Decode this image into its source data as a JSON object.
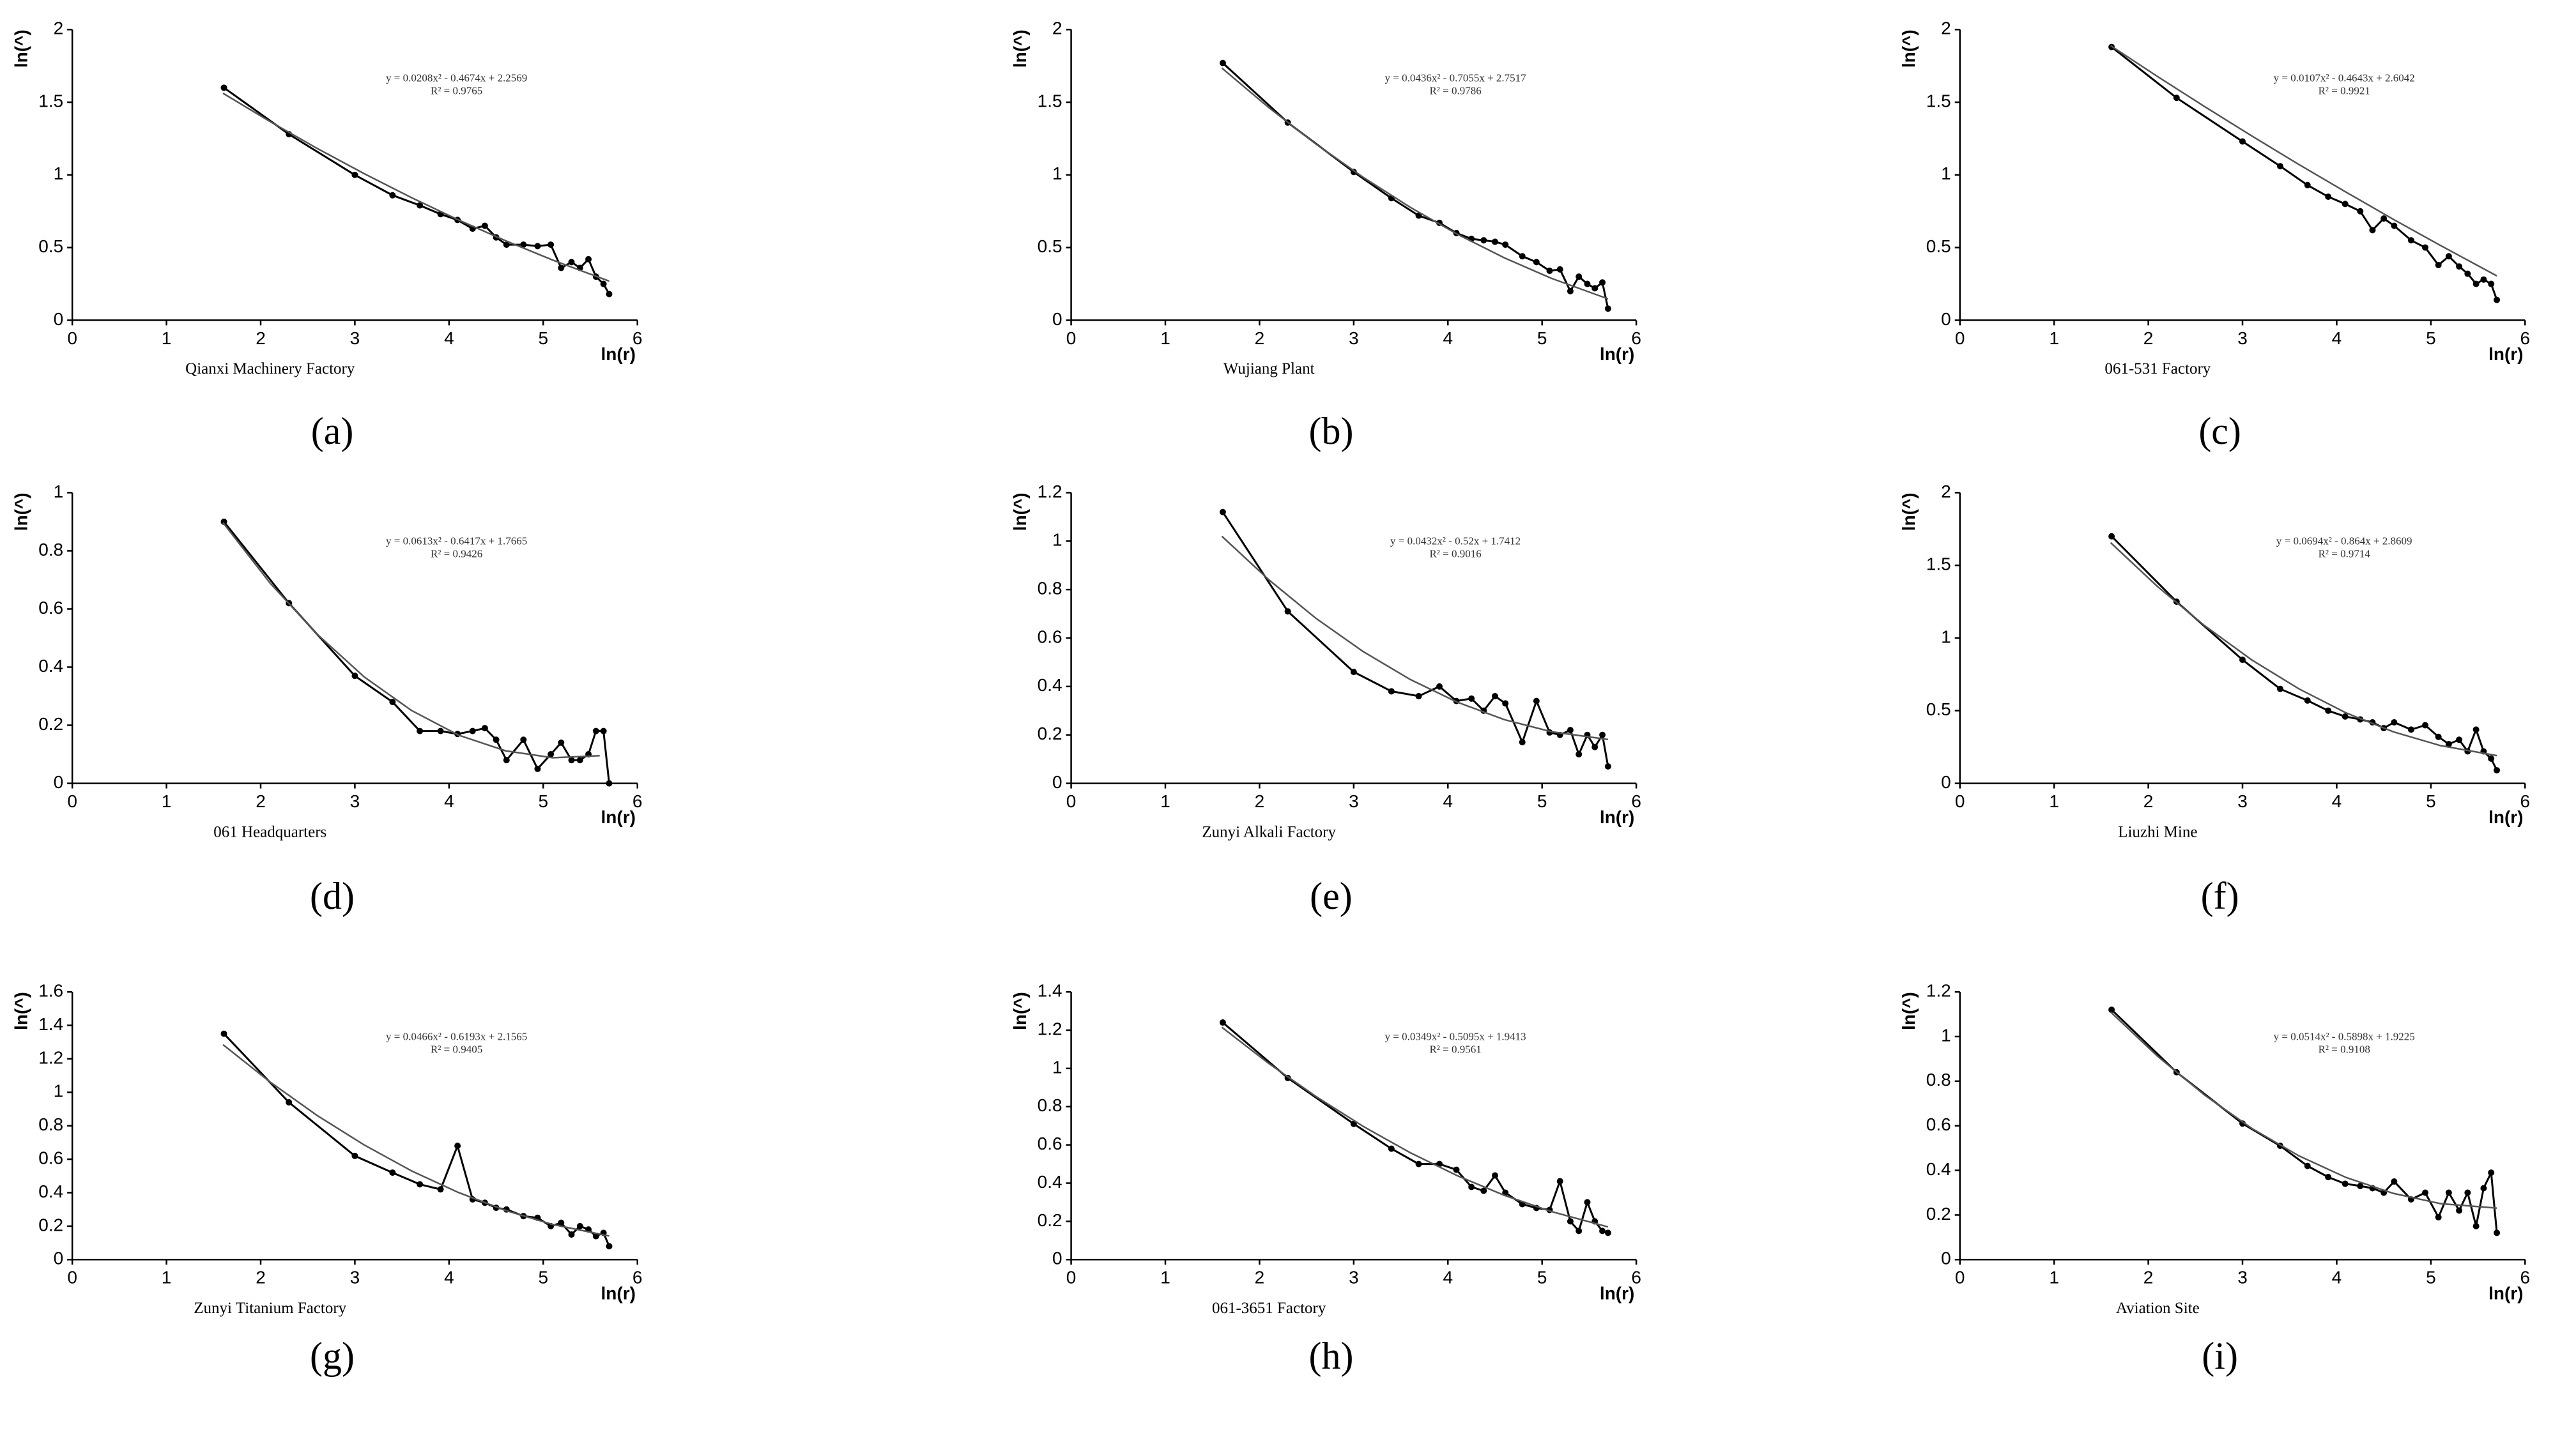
{
  "chart_data": [
    {
      "type": "line",
      "label": "(a)",
      "title": "Qianxi Machinery Factory",
      "equation": "y = 0.0208x² - 0.4674x + 2.2569",
      "r2": "R² = 0.9765",
      "xlabel": "ln(r)",
      "ylabel": "ln(^)",
      "xlim": [
        0,
        6
      ],
      "xticks": [
        0,
        1,
        2,
        3,
        4,
        5,
        6
      ],
      "ylim": [
        0,
        2
      ],
      "yticks": [
        0,
        0.5,
        1,
        1.5,
        2
      ],
      "series": [
        {
          "color": "#000000",
          "marker": true,
          "x": [
            1.61,
            2.3,
            3,
            3.4,
            3.69,
            3.91,
            4.09,
            4.25,
            4.38,
            4.5,
            4.61,
            4.79,
            4.94,
            5.08,
            5.19,
            5.3,
            5.39,
            5.48,
            5.56,
            5.64,
            5.7
          ],
          "values": [
            1.6,
            1.28,
            1.0,
            0.86,
            0.79,
            0.73,
            0.69,
            0.63,
            0.65,
            0.57,
            0.52,
            0.52,
            0.51,
            0.52,
            0.36,
            0.4,
            0.36,
            0.42,
            0.3,
            0.25,
            0.18
          ]
        },
        {
          "color": "#555555",
          "marker": false,
          "x": [
            1.6,
            2.1,
            2.6,
            3.1,
            3.6,
            4.1,
            4.6,
            5.1,
            5.7
          ],
          "values": [
            1.562,
            1.367,
            1.182,
            1.008,
            0.844,
            0.69,
            0.547,
            0.414,
            0.269
          ]
        }
      ]
    },
    {
      "type": "line",
      "label": "(b)",
      "title": "Wujiang Plant",
      "equation": "y = 0.0436x² - 0.7055x + 2.7517",
      "r2": "R² = 0.9786",
      "xlabel": "ln(r)",
      "ylabel": "ln(^)",
      "xlim": [
        0,
        6
      ],
      "xticks": [
        0,
        1,
        2,
        3,
        4,
        5,
        6
      ],
      "ylim": [
        0,
        2
      ],
      "yticks": [
        0,
        0.5,
        1,
        1.5,
        2
      ],
      "series": [
        {
          "color": "#000000",
          "marker": true,
          "x": [
            1.61,
            2.3,
            3,
            3.4,
            3.69,
            3.91,
            4.09,
            4.25,
            4.38,
            4.5,
            4.61,
            4.79,
            4.94,
            5.08,
            5.19,
            5.3,
            5.39,
            5.48,
            5.56,
            5.64,
            5.7
          ],
          "values": [
            1.77,
            1.36,
            1.02,
            0.84,
            0.72,
            0.67,
            0.6,
            0.56,
            0.55,
            0.54,
            0.52,
            0.44,
            0.4,
            0.34,
            0.35,
            0.2,
            0.3,
            0.25,
            0.22,
            0.26,
            0.08
          ]
        },
        {
          "color": "#555555",
          "marker": false,
          "x": [
            1.6,
            2.1,
            2.6,
            3.1,
            3.6,
            4.1,
            4.6,
            5.1,
            5.7
          ],
          "values": [
            1.735,
            1.462,
            1.212,
            0.984,
            0.777,
            0.592,
            0.429,
            0.288,
            0.147
          ]
        }
      ]
    },
    {
      "type": "line",
      "label": "(c)",
      "title": "061-531 Factory",
      "equation": "y = 0.0107x² - 0.4643x + 2.6042",
      "r2": "R² = 0.9921",
      "xlabel": "ln(r)",
      "ylabel": "ln(^)",
      "xlim": [
        0,
        6
      ],
      "xticks": [
        0,
        1,
        2,
        3,
        4,
        5,
        6
      ],
      "ylim": [
        0,
        2
      ],
      "yticks": [
        0,
        0.5,
        1,
        1.5,
        2
      ],
      "series": [
        {
          "color": "#000000",
          "marker": true,
          "x": [
            1.61,
            2.3,
            3,
            3.4,
            3.69,
            3.91,
            4.09,
            4.25,
            4.38,
            4.5,
            4.61,
            4.79,
            4.94,
            5.08,
            5.19,
            5.3,
            5.39,
            5.48,
            5.56,
            5.64,
            5.7
          ],
          "values": [
            1.88,
            1.53,
            1.23,
            1.06,
            0.93,
            0.85,
            0.8,
            0.75,
            0.62,
            0.7,
            0.65,
            0.55,
            0.5,
            0.38,
            0.44,
            0.37,
            0.32,
            0.25,
            0.28,
            0.25,
            0.14
          ]
        },
        {
          "color": "#555555",
          "marker": false,
          "x": [
            1.6,
            2.1,
            2.6,
            3.1,
            3.6,
            4.1,
            4.6,
            5.1,
            5.7
          ],
          "values": [
            1.889,
            1.676,
            1.469,
            1.268,
            1.071,
            0.881,
            0.695,
            0.515,
            0.305
          ]
        }
      ]
    },
    {
      "type": "line",
      "label": "(d)",
      "title": "061 Headquarters",
      "equation": "y = 0.0613x² - 0.6417x + 1.7665",
      "r2": "R² = 0.9426",
      "xlabel": "ln(r)",
      "ylabel": "ln(^)",
      "xlim": [
        0,
        6
      ],
      "xticks": [
        0,
        1,
        2,
        3,
        4,
        5,
        6
      ],
      "ylim": [
        0,
        1
      ],
      "yticks": [
        0,
        0.2,
        0.4,
        0.6,
        0.8,
        1
      ],
      "series": [
        {
          "color": "#000000",
          "marker": true,
          "x": [
            1.61,
            2.3,
            3,
            3.4,
            3.69,
            3.91,
            4.09,
            4.25,
            4.38,
            4.5,
            4.61,
            4.79,
            4.94,
            5.08,
            5.19,
            5.3,
            5.39,
            5.48,
            5.56,
            5.64,
            5.7
          ],
          "values": [
            0.9,
            0.62,
            0.37,
            0.28,
            0.18,
            0.18,
            0.17,
            0.18,
            0.19,
            0.15,
            0.08,
            0.15,
            0.05,
            0.1,
            0.14,
            0.08,
            0.08,
            0.1,
            0.18,
            0.18,
            0.0
          ]
        },
        {
          "color": "#555555",
          "marker": false,
          "x": [
            1.6,
            2.1,
            2.6,
            3.1,
            3.6,
            4.1,
            4.6,
            5.1,
            5.6
          ],
          "values": [
            0.897,
            0.689,
            0.513,
            0.366,
            0.251,
            0.166,
            0.112,
            0.088,
            0.095
          ]
        }
      ]
    },
    {
      "type": "line",
      "label": "(e)",
      "title": "Zunyi Alkali Factory",
      "equation": "y = 0.0432x² - 0.52x + 1.7412",
      "r2": "R² = 0.9016",
      "xlabel": "ln(r)",
      "ylabel": "ln(^)",
      "xlim": [
        0,
        6
      ],
      "xticks": [
        0,
        1,
        2,
        3,
        4,
        5,
        6
      ],
      "ylim": [
        0,
        1.2
      ],
      "yticks": [
        0,
        0.2,
        0.4,
        0.6,
        0.8,
        1,
        1.2
      ],
      "series": [
        {
          "color": "#000000",
          "marker": true,
          "x": [
            1.61,
            2.3,
            3,
            3.4,
            3.69,
            3.91,
            4.09,
            4.25,
            4.38,
            4.5,
            4.61,
            4.79,
            4.94,
            5.08,
            5.19,
            5.3,
            5.39,
            5.48,
            5.56,
            5.64,
            5.7
          ],
          "values": [
            1.12,
            0.71,
            0.46,
            0.38,
            0.36,
            0.4,
            0.34,
            0.35,
            0.3,
            0.36,
            0.33,
            0.17,
            0.34,
            0.21,
            0.2,
            0.22,
            0.12,
            0.2,
            0.15,
            0.2,
            0.07
          ]
        },
        {
          "color": "#555555",
          "marker": false,
          "x": [
            1.6,
            2.1,
            2.6,
            3.1,
            3.6,
            4.1,
            4.6,
            5.1,
            5.7
          ],
          "values": [
            1.02,
            0.84,
            0.681,
            0.544,
            0.429,
            0.335,
            0.263,
            0.213,
            0.181
          ]
        }
      ]
    },
    {
      "type": "line",
      "label": "(f)",
      "title": "Liuzhi Mine",
      "equation": "y = 0.0694x² - 0.864x + 2.8609",
      "r2": "R² = 0.9714",
      "xlabel": "ln(r)",
      "ylabel": "ln(^)",
      "xlim": [
        0,
        6
      ],
      "xticks": [
        0,
        1,
        2,
        3,
        4,
        5,
        6
      ],
      "ylim": [
        0,
        2
      ],
      "yticks": [
        0,
        0.5,
        1,
        1.5,
        2
      ],
      "series": [
        {
          "color": "#000000",
          "marker": true,
          "x": [
            1.61,
            2.3,
            3,
            3.4,
            3.69,
            3.91,
            4.09,
            4.25,
            4.38,
            4.5,
            4.61,
            4.79,
            4.94,
            5.08,
            5.19,
            5.3,
            5.39,
            5.48,
            5.56,
            5.64,
            5.7
          ],
          "values": [
            1.7,
            1.25,
            0.85,
            0.65,
            0.57,
            0.5,
            0.46,
            0.44,
            0.42,
            0.38,
            0.42,
            0.37,
            0.4,
            0.32,
            0.27,
            0.3,
            0.22,
            0.37,
            0.22,
            0.17,
            0.09
          ]
        },
        {
          "color": "#555555",
          "marker": false,
          "x": [
            1.6,
            2.1,
            2.6,
            3.1,
            3.6,
            4.1,
            4.6,
            5.1,
            5.7
          ],
          "values": [
            1.656,
            1.353,
            1.084,
            0.849,
            0.65,
            0.485,
            0.355,
            0.26,
            0.191
          ]
        }
      ]
    },
    {
      "type": "line",
      "label": "(g)",
      "title": "Zunyi Titanium Factory",
      "equation": "y = 0.0466x² - 0.6193x + 2.1565",
      "r2": "R² = 0.9405",
      "xlabel": "ln(r)",
      "ylabel": "ln(^)",
      "xlim": [
        0,
        6
      ],
      "xticks": [
        0,
        1,
        2,
        3,
        4,
        5,
        6
      ],
      "ylim": [
        0,
        1.6
      ],
      "yticks": [
        0,
        0.2,
        0.4,
        0.6,
        0.8,
        1,
        1.2,
        1.4,
        1.6
      ],
      "series": [
        {
          "color": "#000000",
          "marker": true,
          "x": [
            1.61,
            2.3,
            3,
            3.4,
            3.69,
            3.91,
            4.09,
            4.25,
            4.38,
            4.5,
            4.61,
            4.79,
            4.94,
            5.08,
            5.19,
            5.3,
            5.39,
            5.48,
            5.56,
            5.64,
            5.7
          ],
          "values": [
            1.35,
            0.94,
            0.62,
            0.52,
            0.45,
            0.42,
            0.68,
            0.36,
            0.34,
            0.31,
            0.3,
            0.26,
            0.25,
            0.2,
            0.22,
            0.15,
            0.2,
            0.18,
            0.14,
            0.16,
            0.08
          ]
        },
        {
          "color": "#555555",
          "marker": false,
          "x": [
            1.6,
            2.1,
            2.6,
            3.1,
            3.6,
            4.1,
            4.6,
            5.1,
            5.7
          ],
          "values": [
            1.285,
            1.062,
            0.861,
            0.685,
            0.531,
            0.401,
            0.294,
            0.21,
            0.141
          ]
        }
      ]
    },
    {
      "type": "line",
      "label": "(h)",
      "title": "061-3651 Factory",
      "equation": "y = 0.0349x² - 0.5095x + 1.9413",
      "r2": "R² = 0.9561",
      "xlabel": "ln(r)",
      "ylabel": "ln(^)",
      "xlim": [
        0,
        6
      ],
      "xticks": [
        0,
        1,
        2,
        3,
        4,
        5,
        6
      ],
      "ylim": [
        0,
        1.4
      ],
      "yticks": [
        0,
        0.2,
        0.4,
        0.6,
        0.8,
        1,
        1.2,
        1.4
      ],
      "series": [
        {
          "color": "#000000",
          "marker": true,
          "x": [
            1.61,
            2.3,
            3,
            3.4,
            3.69,
            3.91,
            4.09,
            4.25,
            4.38,
            4.5,
            4.61,
            4.79,
            4.94,
            5.08,
            5.19,
            5.3,
            5.39,
            5.48,
            5.56,
            5.64,
            5.7
          ],
          "values": [
            1.24,
            0.95,
            0.71,
            0.58,
            0.5,
            0.5,
            0.47,
            0.38,
            0.36,
            0.44,
            0.35,
            0.29,
            0.27,
            0.26,
            0.41,
            0.2,
            0.15,
            0.3,
            0.2,
            0.15,
            0.14
          ]
        },
        {
          "color": "#555555",
          "marker": false,
          "x": [
            1.6,
            2.1,
            2.6,
            3.1,
            3.6,
            4.1,
            4.6,
            5.1,
            5.7
          ],
          "values": [
            1.215,
            1.025,
            0.853,
            0.697,
            0.559,
            0.439,
            0.336,
            0.251,
            0.171
          ]
        }
      ]
    },
    {
      "type": "line",
      "label": "(i)",
      "title": "Aviation Site",
      "equation": "y = 0.0514x² - 0.5898x + 1.9225",
      "r2": "R² = 0.9108",
      "xlabel": "ln(r)",
      "ylabel": "ln(^)",
      "xlim": [
        0,
        6
      ],
      "xticks": [
        0,
        1,
        2,
        3,
        4,
        5,
        6
      ],
      "ylim": [
        0,
        1.2
      ],
      "yticks": [
        0,
        0.2,
        0.4,
        0.6,
        0.8,
        1,
        1.2
      ],
      "series": [
        {
          "color": "#000000",
          "marker": true,
          "x": [
            1.61,
            2.3,
            3,
            3.4,
            3.69,
            3.91,
            4.09,
            4.25,
            4.38,
            4.5,
            4.61,
            4.79,
            4.94,
            5.08,
            5.19,
            5.3,
            5.39,
            5.48,
            5.56,
            5.64,
            5.7
          ],
          "values": [
            1.12,
            0.84,
            0.61,
            0.51,
            0.42,
            0.37,
            0.34,
            0.33,
            0.32,
            0.3,
            0.35,
            0.27,
            0.3,
            0.19,
            0.3,
            0.22,
            0.3,
            0.15,
            0.32,
            0.39,
            0.12
          ]
        },
        {
          "color": "#555555",
          "marker": false,
          "x": [
            1.6,
            2.1,
            2.6,
            3.1,
            3.6,
            4.1,
            4.6,
            5.1,
            5.7
          ],
          "values": [
            1.11,
            0.911,
            0.737,
            0.588,
            0.465,
            0.368,
            0.297,
            0.251,
            0.231
          ]
        }
      ]
    }
  ]
}
